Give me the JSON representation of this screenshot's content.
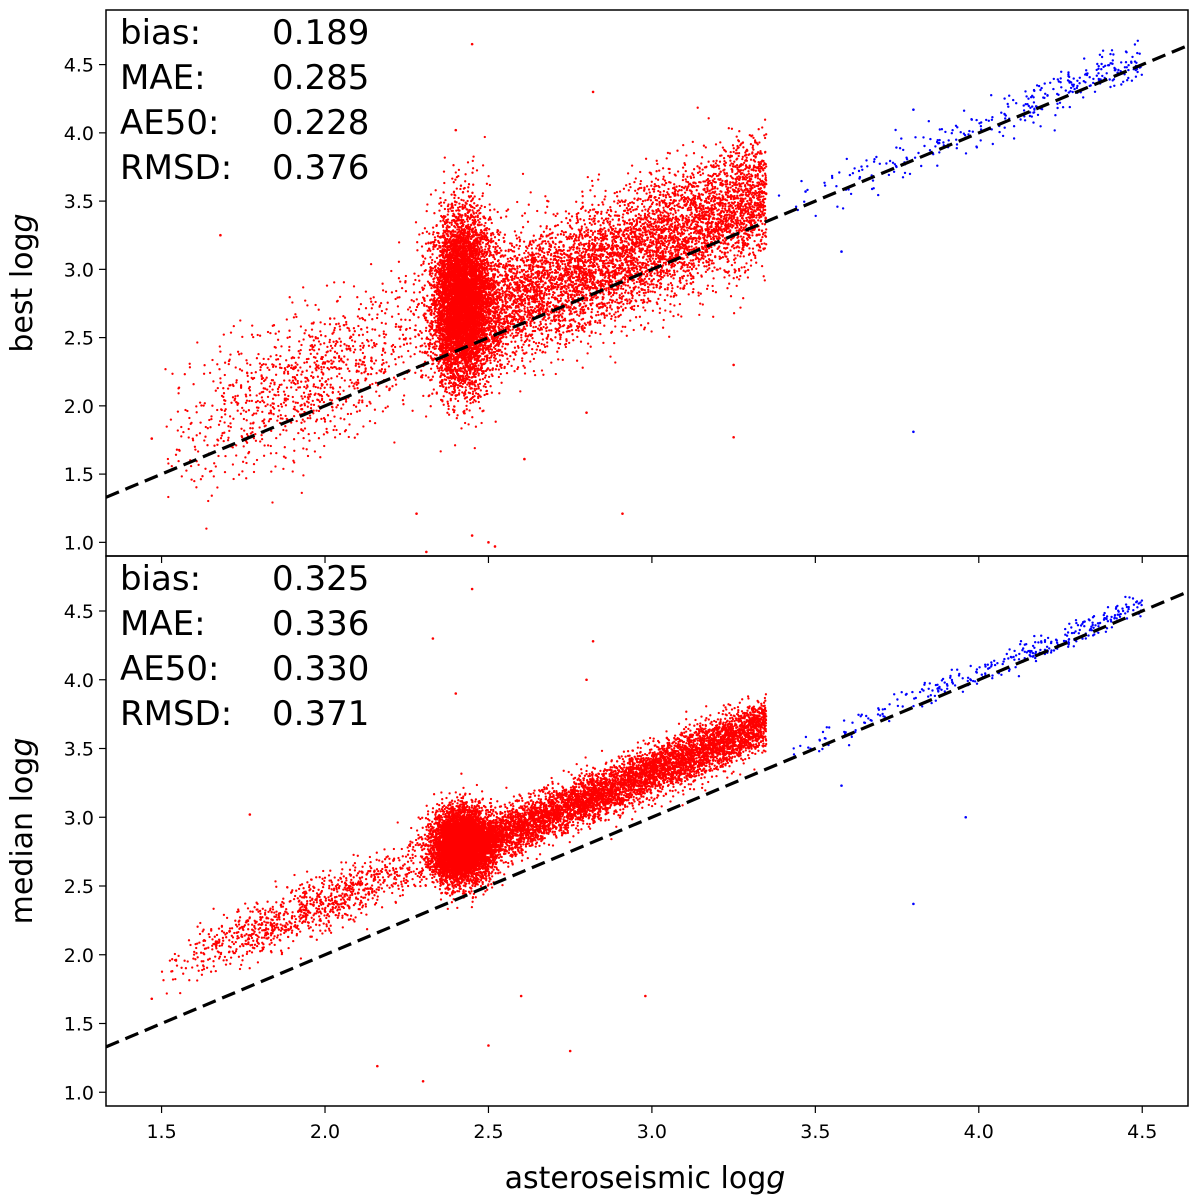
{
  "figure": {
    "xlabel_prefix": "asteroseismic log",
    "xlabel_italic": "g"
  },
  "colors": {
    "giants": "#ff0000",
    "dwarfs": "#0000ff",
    "identity_line": "#000000"
  },
  "chart_data": [
    {
      "type": "scatter",
      "panel": "top",
      "ylabel_prefix": "best log",
      "ylabel_italic": "g",
      "xlim": [
        1.33,
        4.64
      ],
      "ylim": [
        0.9,
        4.9
      ],
      "xticks": [
        "1.5",
        "2.0",
        "2.5",
        "3.0",
        "3.5",
        "4.0",
        "4.5"
      ],
      "yticks": [
        "1.0",
        "1.5",
        "2.0",
        "2.5",
        "3.0",
        "3.5",
        "4.0",
        "4.5"
      ],
      "stats": [
        {
          "label": "bias:",
          "value": "0.189"
        },
        {
          "label": "MAE:",
          "value": "0.285"
        },
        {
          "label": "AE50:",
          "value": "0.228"
        },
        {
          "label": "RMSD:",
          "value": "0.376"
        }
      ],
      "reference_line": {
        "style": "dashed",
        "x": [
          1.33,
          4.64
        ],
        "y": [
          1.33,
          4.64
        ]
      },
      "series": [
        {
          "name": "red giants",
          "color": "#ff0000",
          "n_points": 14000,
          "model": {
            "x_range": [
              1.5,
              3.35
            ],
            "cluster_x": 2.42,
            "cluster_y": 2.8,
            "offset": 0.19,
            "scatter": 0.3
          }
        },
        {
          "name": "dwarfs",
          "color": "#0000ff",
          "n_points": 320,
          "model": {
            "x_range": [
              3.35,
              4.5
            ],
            "offset": 0.05,
            "scatter": 0.08
          }
        }
      ],
      "outliers": [
        [
          1.47,
          1.76
        ],
        [
          1.68,
          3.25
        ],
        [
          2.45,
          4.65
        ],
        [
          2.82,
          4.3
        ],
        [
          2.28,
          1.21
        ],
        [
          2.31,
          0.93
        ],
        [
          2.45,
          1.05
        ],
        [
          2.5,
          1.0
        ],
        [
          2.52,
          0.97
        ],
        [
          2.91,
          1.21
        ],
        [
          2.61,
          1.61
        ],
        [
          3.25,
          1.77
        ],
        [
          3.25,
          2.3
        ],
        [
          2.4,
          4.02
        ],
        [
          2.8,
          1.95
        ]
      ],
      "dwarf_outliers": [
        [
          3.8,
          1.81
        ],
        [
          3.58,
          3.13
        ],
        [
          3.8,
          4.17
        ],
        [
          3.47,
          3.57
        ]
      ]
    },
    {
      "type": "scatter",
      "panel": "bottom",
      "ylabel_prefix": "median log",
      "ylabel_italic": "g",
      "xlim": [
        1.33,
        4.64
      ],
      "ylim": [
        0.9,
        4.9
      ],
      "xticks": [
        "1.5",
        "2.0",
        "2.5",
        "3.0",
        "3.5",
        "4.0",
        "4.5"
      ],
      "yticks": [
        "1.0",
        "1.5",
        "2.0",
        "2.5",
        "3.0",
        "3.5",
        "4.0",
        "4.5"
      ],
      "stats": [
        {
          "label": "bias:",
          "value": "0.325"
        },
        {
          "label": "MAE:",
          "value": "0.336"
        },
        {
          "label": "AE50:",
          "value": "0.330"
        },
        {
          "label": "RMSD:",
          "value": "0.371"
        }
      ],
      "reference_line": {
        "style": "dashed",
        "x": [
          1.33,
          4.64
        ],
        "y": [
          1.33,
          4.64
        ]
      },
      "series": [
        {
          "name": "red giants",
          "color": "#ff0000",
          "n_points": 14000,
          "model": {
            "x_range": [
              1.5,
              3.35
            ],
            "cluster_x": 2.42,
            "cluster_y": 2.8,
            "offset": 0.33,
            "scatter": 0.12
          }
        },
        {
          "name": "dwarfs",
          "color": "#0000ff",
          "n_points": 320,
          "model": {
            "x_range": [
              3.35,
              4.5
            ],
            "offset": 0.05,
            "scatter": 0.05
          }
        }
      ],
      "outliers": [
        [
          1.47,
          1.68
        ],
        [
          1.77,
          3.02
        ],
        [
          2.45,
          4.66
        ],
        [
          2.82,
          4.28
        ],
        [
          2.16,
          1.19
        ],
        [
          2.3,
          1.08
        ],
        [
          2.5,
          1.34
        ],
        [
          2.75,
          1.3
        ],
        [
          2.6,
          1.7
        ],
        [
          2.98,
          1.7
        ],
        [
          2.33,
          4.3
        ],
        [
          2.8,
          4.0
        ],
        [
          2.4,
          3.9
        ]
      ],
      "dwarf_outliers": [
        [
          3.8,
          2.37
        ],
        [
          3.96,
          3.0
        ],
        [
          3.58,
          3.23
        ]
      ]
    }
  ]
}
